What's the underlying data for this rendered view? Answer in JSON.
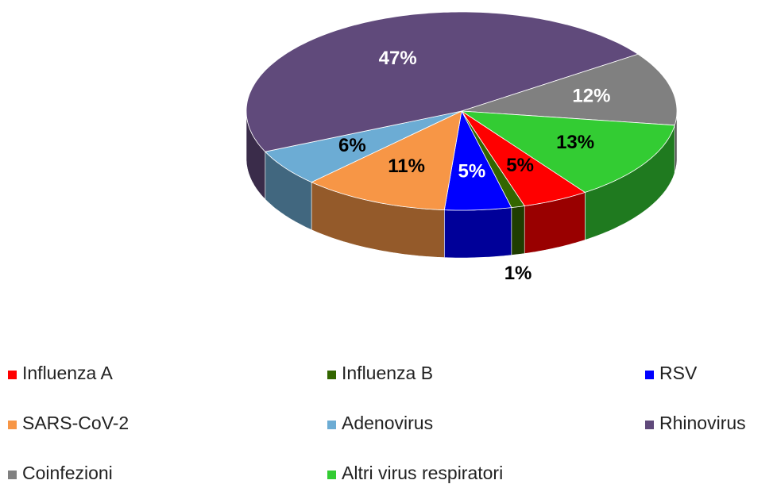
{
  "chart_data": {
    "type": "pie3d",
    "categories": [
      "Influenza A",
      "Influenza B",
      "RSV",
      "SARS-CoV-2",
      "Adenovirus",
      "Rhinovirus",
      "Coinfezioni",
      "Altri virus respiratori"
    ],
    "series": [
      {
        "values": [
          5,
          1,
          5,
          11,
          6,
          47,
          12,
          13
        ],
        "value_labels": [
          "5%",
          "1%",
          "5%",
          "11%",
          "6%",
          "47%",
          "12%",
          "13%"
        ],
        "colors": [
          "#ff0000",
          "#336600",
          "#0000ff",
          "#f79646",
          "#6cacd4",
          "#604a7b",
          "#808080",
          "#33cc33"
        ]
      }
    ],
    "legend": "bottom"
  }
}
